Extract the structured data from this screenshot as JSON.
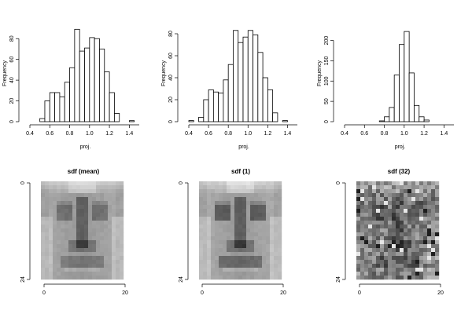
{
  "chart_data": [
    {
      "type": "bar",
      "subtype": "histogram",
      "title": "",
      "xlabel": "proj.",
      "ylabel": "Frequency",
      "xlim": [
        0.4,
        1.5
      ],
      "ylim": [
        0,
        90
      ],
      "xticks": [
        "0.4",
        "0.6",
        "0.8",
        "1.0",
        "1.2",
        "1.4"
      ],
      "yticks": [
        "0",
        "20",
        "40",
        "60",
        "80"
      ],
      "bin_width": 0.05,
      "bin_starts": [
        0.5,
        0.55,
        0.6,
        0.65,
        0.7,
        0.75,
        0.8,
        0.85,
        0.9,
        0.95,
        1.0,
        1.05,
        1.1,
        1.15,
        1.2,
        1.25,
        1.3,
        1.35,
        1.4,
        1.45
      ],
      "values": [
        3,
        20,
        28,
        28,
        24,
        38,
        52,
        89,
        68,
        71,
        81,
        80,
        70,
        48,
        28,
        8,
        0,
        0,
        1,
        0
      ]
    },
    {
      "type": "bar",
      "subtype": "histogram",
      "title": "",
      "xlabel": "proj.",
      "ylabel": "Frequency",
      "xlim": [
        0.4,
        1.5
      ],
      "ylim": [
        0,
        85
      ],
      "xticks": [
        "0.4",
        "0.6",
        "0.8",
        "1.0",
        "1.2",
        "1.4"
      ],
      "yticks": [
        "0",
        "20",
        "40",
        "60",
        "80"
      ],
      "bin_width": 0.05,
      "bin_starts": [
        0.4,
        0.45,
        0.5,
        0.55,
        0.6,
        0.65,
        0.7,
        0.75,
        0.8,
        0.85,
        0.9,
        0.95,
        1.0,
        1.05,
        1.1,
        1.15,
        1.2,
        1.25,
        1.3,
        1.35,
        1.4
      ],
      "values": [
        1,
        0,
        4,
        20,
        29,
        27,
        26,
        38,
        52,
        83,
        72,
        77,
        83,
        79,
        63,
        40,
        29,
        8,
        0,
        1,
        0
      ]
    },
    {
      "type": "bar",
      "subtype": "histogram",
      "title": "",
      "xlabel": "proj.",
      "ylabel": "Frequency",
      "xlim": [
        0.4,
        1.5
      ],
      "ylim": [
        0,
        230
      ],
      "xticks": [
        "0.4",
        "0.6",
        "0.8",
        "1.0",
        "1.2",
        "1.4"
      ],
      "yticks": [
        "0",
        "50",
        "100",
        "150",
        "200"
      ],
      "bin_width": 0.05,
      "bin_starts": [
        0.4,
        0.45,
        0.5,
        0.55,
        0.6,
        0.65,
        0.7,
        0.75,
        0.8,
        0.85,
        0.9,
        0.95,
        1.0,
        1.05,
        1.1,
        1.15,
        1.2,
        1.25,
        1.3,
        1.35,
        1.4,
        1.45
      ],
      "values": [
        0,
        0,
        0,
        0,
        0,
        0,
        0,
        2,
        12,
        35,
        115,
        190,
        222,
        120,
        40,
        12,
        4,
        0,
        0,
        0,
        0,
        0
      ]
    },
    {
      "type": "heatmap",
      "title": "sdf (mean)",
      "xlabel": "",
      "ylabel": "",
      "xticks": [
        "0",
        "20"
      ],
      "yticks": [
        "0",
        "24"
      ],
      "colormap": "grayscale",
      "grid_size": [
        21,
        25
      ],
      "content": "grayscale face-like image"
    },
    {
      "type": "heatmap",
      "title": "sdf (1)",
      "xlabel": "",
      "ylabel": "",
      "xticks": [
        "0",
        "20"
      ],
      "yticks": [
        "0",
        "24"
      ],
      "colormap": "grayscale",
      "grid_size": [
        21,
        25
      ],
      "content": "grayscale face-like image"
    },
    {
      "type": "heatmap",
      "title": "sdf (32)",
      "xlabel": "",
      "ylabel": "",
      "xticks": [
        "0",
        "20"
      ],
      "yticks": [
        "0",
        "24"
      ],
      "colormap": "grayscale",
      "grid_size": [
        21,
        25
      ],
      "content": "noisy grayscale face-like image"
    }
  ]
}
